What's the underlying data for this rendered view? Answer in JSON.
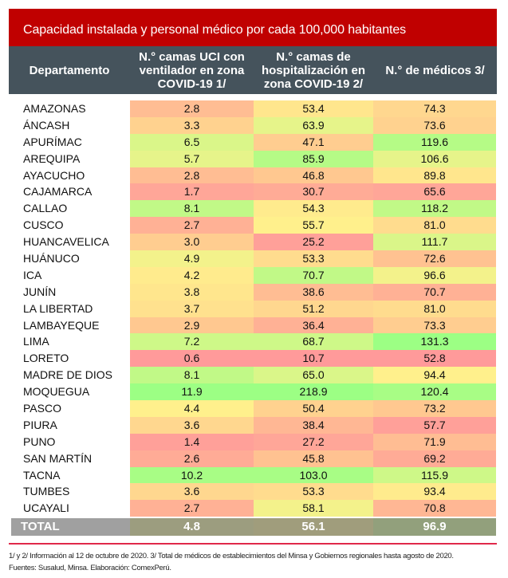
{
  "title": "Capacidad instalada y personal médico por cada 100,000 habitantes",
  "headers": [
    "Departamento",
    "N.° camas UCI con ventilador en zona COVID-19 1/",
    "N.° camas de hospitalización en zona COVID-19 2/",
    "N.° de médicos 3/"
  ],
  "rows": [
    [
      "AMAZONAS",
      "2.8",
      "53.4",
      "74.3"
    ],
    [
      "ÁNCASH",
      "3.3",
      "63.9",
      "73.6"
    ],
    [
      "APURÍMAC",
      "6.5",
      "47.1",
      "119.6"
    ],
    [
      "AREQUIPA",
      "5.7",
      "85.9",
      "106.6"
    ],
    [
      "AYACUCHO",
      "2.8",
      "46.8",
      "89.8"
    ],
    [
      "CAJAMARCA",
      "1.7",
      "30.7",
      "65.6"
    ],
    [
      "CALLAO",
      "8.1",
      "54.3",
      "118.2"
    ],
    [
      "CUSCO",
      "2.7",
      "55.7",
      "81.0"
    ],
    [
      "HUANCAVELICA",
      "3.0",
      "25.2",
      "111.7"
    ],
    [
      "HUÁNUCO",
      "4.9",
      "53.3",
      "72.6"
    ],
    [
      "ICA",
      "4.2",
      "70.7",
      "96.6"
    ],
    [
      "JUNÍN",
      "3.8",
      "38.6",
      "70.7"
    ],
    [
      "LA LIBERTAD",
      "3.7",
      "51.2",
      "81.0"
    ],
    [
      "LAMBAYEQUE",
      "2.9",
      "36.4",
      "73.3"
    ],
    [
      "LIMA",
      "7.2",
      "68.7",
      "131.3"
    ],
    [
      "LORETO",
      "0.6",
      "10.7",
      "52.8"
    ],
    [
      "MADRE DE DIOS",
      "8.1",
      "65.0",
      "94.4"
    ],
    [
      "MOQUEGUA",
      "11.9",
      "218.9",
      "120.4"
    ],
    [
      "PASCO",
      "4.4",
      "50.4",
      "73.2"
    ],
    [
      "PIURA",
      "3.6",
      "38.4",
      "57.7"
    ],
    [
      "PUNO",
      "1.4",
      "27.2",
      "71.9"
    ],
    [
      "SAN MARTÍN",
      "2.6",
      "45.8",
      "69.2"
    ],
    [
      "TACNA",
      "10.2",
      "103.0",
      "115.9"
    ],
    [
      "TUMBES",
      "3.6",
      "53.3",
      "93.4"
    ],
    [
      "UCAYALI",
      "2.7",
      "58.1",
      "70.8"
    ]
  ],
  "total": [
    "TOTAL",
    "4.8",
    "56.1",
    "96.9"
  ],
  "scale_colors": [
    "#ff9a9a",
    "#ffc890",
    "#fff08c",
    "#9cff84"
  ],
  "notes": [
    "1/ y 2/ Información al 12 de octubre de 2020. 3/ Total de médicos de establecimientos del Minsa y Gobiernos regionales hasta agosto de 2020.",
    "Fuentes: Susalud, Minsa. Elaboración: ComexPerú."
  ]
}
